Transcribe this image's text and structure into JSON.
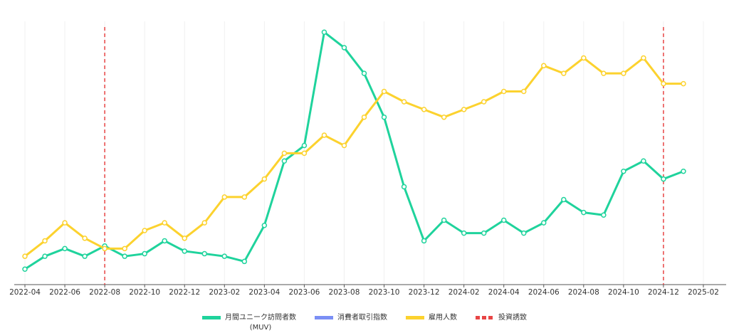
{
  "chart_data": {
    "type": "line",
    "x": [
      "2022-04",
      "2022-05",
      "2022-06",
      "2022-07",
      "2022-08",
      "2022-09",
      "2022-10",
      "2022-11",
      "2022-12",
      "2023-01",
      "2023-02",
      "2023-03",
      "2023-04",
      "2023-05",
      "2023-06",
      "2023-07",
      "2023-08",
      "2023-09",
      "2023-10",
      "2023-11",
      "2023-12",
      "2024-01",
      "2024-02",
      "2024-03",
      "2024-04",
      "2024-05",
      "2024-06",
      "2024-07",
      "2024-08",
      "2024-09",
      "2024-10",
      "2024-11",
      "2024-12",
      "2025-01"
    ],
    "series": [
      {
        "name": "月間ユニーク訪問者数\n(MUV)",
        "color": "#1fd39c",
        "values": [
          6,
          11,
          14,
          11,
          15,
          11,
          12,
          17,
          13,
          12,
          11,
          9,
          23,
          48,
          54,
          98,
          92,
          82,
          65,
          38,
          17,
          25,
          20,
          20,
          25,
          20,
          24,
          33,
          28,
          27,
          44,
          48,
          41,
          44
        ]
      },
      {
        "name": "消費者取引指数",
        "color": "#7b8ff5",
        "values": [
          null,
          null,
          null,
          null,
          null,
          null,
          null,
          null,
          null,
          null,
          null,
          null,
          null,
          null,
          null,
          null,
          null,
          null,
          null,
          null,
          null,
          null,
          null,
          null,
          null,
          null,
          null,
          null,
          null,
          null,
          null,
          null,
          null,
          null
        ]
      },
      {
        "name": "雇用人数",
        "color": "#fcd22e",
        "values": [
          11,
          17,
          24,
          18,
          14,
          14,
          21,
          24,
          18,
          24,
          34,
          34,
          41,
          51,
          51,
          58,
          54,
          65,
          75,
          71,
          68,
          65,
          68,
          71,
          75,
          75,
          85,
          82,
          88,
          82,
          82,
          88,
          78,
          78
        ]
      }
    ],
    "events": {
      "name": "投資誘致",
      "color": "#e84545",
      "x": [
        "2022-08",
        "2024-12"
      ]
    },
    "xlim": [
      "2022-04",
      "2025-02"
    ],
    "xticks": [
      "2022-04",
      "2022-06",
      "2022-08",
      "2022-10",
      "2022-12",
      "2023-02",
      "2023-04",
      "2023-06",
      "2023-08",
      "2023-10",
      "2023-12",
      "2024-02",
      "2024-04",
      "2024-06",
      "2024-08",
      "2024-10",
      "2024-12",
      "2025-02"
    ],
    "ylim": [
      0,
      100
    ],
    "grid": true
  }
}
